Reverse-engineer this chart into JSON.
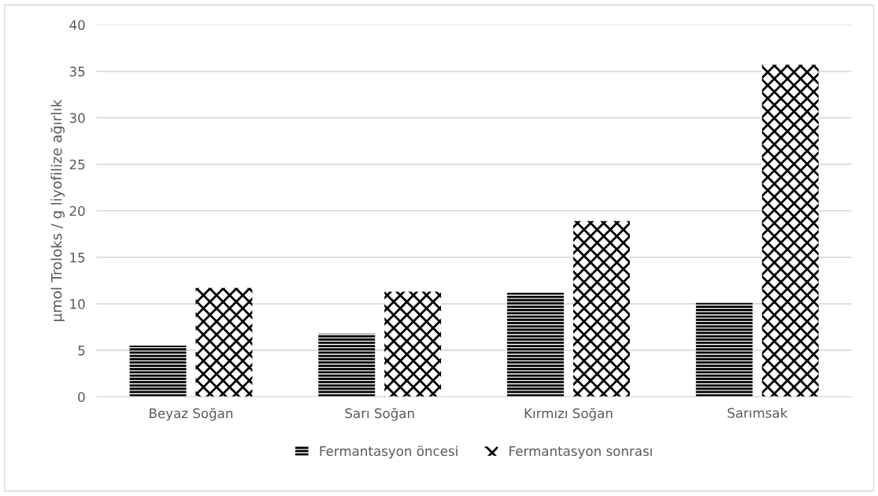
{
  "chart_data": {
    "type": "bar",
    "ylabel": "µmol Troloks / g liyofilize ağırlık",
    "categories": [
      "Beyaz Soğan",
      "Sarı Soğan",
      "Kırmızı Soğan",
      "Sarımsak"
    ],
    "series": [
      {
        "name": "Fermantasyon öncesi",
        "color": "#000000",
        "values": [
          5.5,
          6.8,
          11.2,
          10.1
        ]
      },
      {
        "name": "Fermantasyon sonrası",
        "color": "#000000",
        "values": [
          11.7,
          11.3,
          18.9,
          35.7
        ]
      }
    ],
    "ylim": [
      0,
      40
    ],
    "yticks": [
      0,
      5,
      10,
      15,
      20,
      25,
      30,
      35,
      40
    ],
    "grid": "y",
    "legend": "bottom"
  }
}
